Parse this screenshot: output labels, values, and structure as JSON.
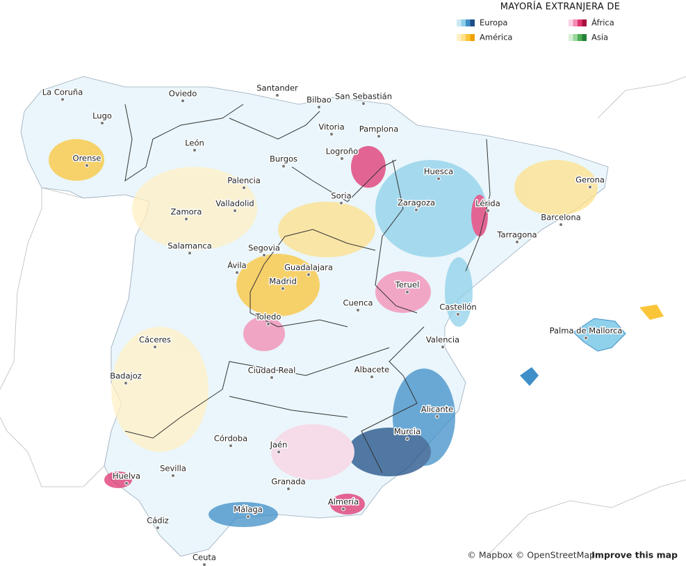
{
  "legend": {
    "title": "MAYORÍA EXTRANJERA DE",
    "items": [
      {
        "label": "Europa",
        "colors": [
          "#cbe9f4",
          "#8fd0ea",
          "#3f8fc8",
          "#1d4e86"
        ]
      },
      {
        "label": "África",
        "colors": [
          "#fbd2e3",
          "#f38bb4",
          "#e0346f",
          "#a8123f"
        ]
      },
      {
        "label": "América",
        "colors": [
          "#fff0c4",
          "#ffe08a",
          "#fbc53a",
          "#eea000"
        ]
      },
      {
        "label": "Asia",
        "colors": [
          "#d5efd6",
          "#9ad79c",
          "#4cae52",
          "#23803a"
        ]
      }
    ]
  },
  "cities": [
    "La Coruña",
    "Oviedo",
    "Santander",
    "Bilbao",
    "San Sebastián",
    "Lugo",
    "Vitoria",
    "Pamplona",
    "León",
    "Logroño",
    "Orense",
    "Burgos",
    "Huesca",
    "Palencia",
    "Gerona",
    "Soria",
    "Valladolid",
    "Zaragoza",
    "Lérida",
    "Zamora",
    "Barcelona",
    "Tarragona",
    "Salamanca",
    "Segovia",
    "Ávila",
    "Guadalajara",
    "Madrid",
    "Teruel",
    "Cuenca",
    "Castellón",
    "Toledo",
    "Palma de Mallorca",
    "Cáceres",
    "Valencia",
    "Ciudad Real",
    "Albacete",
    "Badajoz",
    "Alicante",
    "Córdoba",
    "Jaén",
    "Murcia",
    "Huelva",
    "Sevilla",
    "Granada",
    "Almería",
    "Málaga",
    "Cádiz",
    "Ceuta"
  ],
  "attribution": {
    "text": "© Mapbox © OpenStreetMap",
    "link": "Improve this map"
  }
}
